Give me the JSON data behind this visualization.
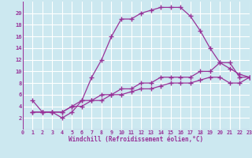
{
  "title": "",
  "xlabel": "Windchill (Refroidissement éolien,°C)",
  "xlim": [
    0,
    23
  ],
  "ylim": [
    0,
    22
  ],
  "xticks": [
    0,
    1,
    2,
    3,
    4,
    5,
    6,
    7,
    8,
    9,
    10,
    11,
    12,
    13,
    14,
    15,
    16,
    17,
    18,
    19,
    20,
    21,
    22,
    23
  ],
  "yticks": [
    2,
    4,
    6,
    8,
    10,
    12,
    14,
    16,
    18,
    20
  ],
  "background_color": "#cce8f0",
  "line_color": "#993399",
  "grid_color": "#ffffff",
  "line1_x": [
    1,
    2,
    3,
    4,
    5,
    6,
    7,
    8,
    9,
    10,
    11,
    12,
    13,
    14,
    15,
    16,
    17,
    18,
    19,
    20,
    21,
    22,
    23
  ],
  "line1_y": [
    5,
    3,
    3,
    2,
    3,
    5,
    9,
    12,
    16,
    19,
    19,
    20,
    20.5,
    21,
    21,
    21,
    19.5,
    17,
    14,
    11.5,
    10.5,
    9.5,
    9
  ],
  "line2_x": [
    1,
    2,
    3,
    4,
    5,
    6,
    7,
    8,
    9,
    10,
    11,
    12,
    13,
    14,
    15,
    16,
    17,
    18,
    19,
    20,
    21,
    22,
    23
  ],
  "line2_y": [
    3,
    3,
    3,
    3,
    4,
    5,
    5,
    6,
    6,
    7,
    7,
    8,
    8,
    9,
    9,
    9,
    9,
    10,
    10,
    11.5,
    11.5,
    9,
    9
  ],
  "line3_x": [
    1,
    2,
    3,
    4,
    5,
    6,
    7,
    8,
    9,
    10,
    11,
    12,
    13,
    14,
    15,
    16,
    17,
    18,
    19,
    20,
    21,
    22,
    23
  ],
  "line3_y": [
    3,
    3,
    3,
    3,
    4,
    4,
    5,
    5,
    6,
    6,
    6.5,
    7,
    7,
    7.5,
    8,
    8,
    8,
    8.5,
    9,
    9,
    8,
    8,
    9
  ]
}
